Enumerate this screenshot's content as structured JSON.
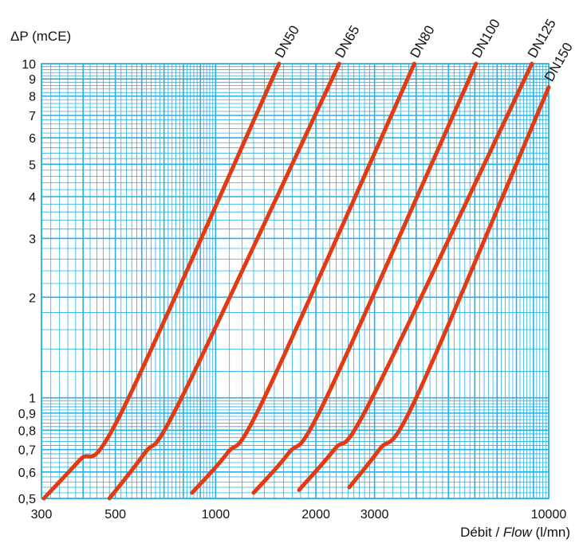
{
  "chart_data": {
    "type": "line",
    "title": "",
    "ylabel": "ΔP (mCE)",
    "xlabel_prefix": "Débit / ",
    "xlabel_italic": "Flow",
    "xlabel_suffix": " (l/mn)",
    "x_scale": "log",
    "y_scale": "log",
    "xlim": [
      300,
      10000
    ],
    "ylim": [
      0.5,
      10
    ],
    "grid": true,
    "x_ticks": [
      {
        "value": 300,
        "label": "300"
      },
      {
        "value": 500,
        "label": "500"
      },
      {
        "value": 1000,
        "label": "1000"
      },
      {
        "value": 2000,
        "label": "2000"
      },
      {
        "value": 3000,
        "label": "3000"
      },
      {
        "value": 10000,
        "label": "10000"
      }
    ],
    "y_ticks": [
      {
        "value": 0.5,
        "label": "0,5"
      },
      {
        "value": 0.6,
        "label": "0,6"
      },
      {
        "value": 0.7,
        "label": "0,7"
      },
      {
        "value": 0.8,
        "label": "0,8"
      },
      {
        "value": 0.9,
        "label": "0,9"
      },
      {
        "value": 1,
        "label": "1"
      },
      {
        "value": 2,
        "label": "2"
      },
      {
        "value": 3,
        "label": "3"
      },
      {
        "value": 4,
        "label": "4"
      },
      {
        "value": 5,
        "label": "5"
      },
      {
        "value": 6,
        "label": "6"
      },
      {
        "value": 7,
        "label": "7"
      },
      {
        "value": 8,
        "label": "8"
      },
      {
        "value": 9,
        "label": "9"
      },
      {
        "value": 10,
        "label": "10"
      }
    ],
    "series": [
      {
        "name": "DN50",
        "points": [
          [
            305,
            0.5
          ],
          [
            390,
            0.65
          ],
          [
            520,
            0.9
          ],
          [
            1550,
            10
          ]
        ]
      },
      {
        "name": "DN65",
        "points": [
          [
            480,
            0.5
          ],
          [
            610,
            0.68
          ],
          [
            790,
            1.0
          ],
          [
            2350,
            10
          ]
        ]
      },
      {
        "name": "DN80",
        "points": [
          [
            850,
            0.52
          ],
          [
            1080,
            0.68
          ],
          [
            1400,
            1.0
          ],
          [
            3950,
            10
          ]
        ]
      },
      {
        "name": "DN100",
        "points": [
          [
            1300,
            0.52
          ],
          [
            1650,
            0.68
          ],
          [
            2150,
            1.0
          ],
          [
            6050,
            10
          ]
        ]
      },
      {
        "name": "DN125",
        "points": [
          [
            1780,
            0.53
          ],
          [
            2270,
            0.7
          ],
          [
            2950,
            1.0
          ],
          [
            8900,
            10
          ]
        ]
      },
      {
        "name": "DN150",
        "points": [
          [
            2520,
            0.54
          ],
          [
            3100,
            0.7
          ],
          [
            4000,
            1.0
          ],
          [
            10000,
            8.5
          ]
        ]
      }
    ],
    "colors": {
      "curve": "#e23a12",
      "grid": "#2ab0e4",
      "background": "#ffffff"
    }
  }
}
